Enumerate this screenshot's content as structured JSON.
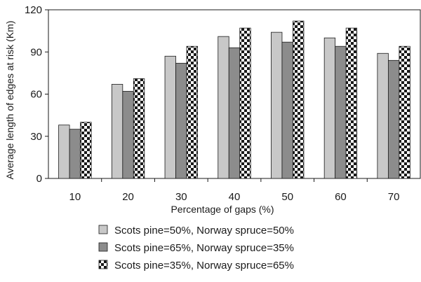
{
  "chart_data": {
    "type": "bar",
    "title": "",
    "xlabel": "Percentage of gaps (%)",
    "ylabel": "Average length of edges at risk (Km)",
    "categories": [
      "10",
      "20",
      "30",
      "40",
      "50",
      "60",
      "70"
    ],
    "ylim": [
      0,
      120
    ],
    "yticks": [
      "0",
      "30",
      "60",
      "90",
      "120"
    ],
    "grid": "none",
    "legend_position": "bottom",
    "series": [
      {
        "name": "Scots pine=50%, Norway spruce=50%",
        "values": [
          38,
          67,
          87,
          101,
          104,
          100,
          89
        ],
        "color": "#c8c8c8",
        "pattern": "solid"
      },
      {
        "name": "Scots pine=65%, Norway spruce=35%",
        "values": [
          35,
          62,
          82,
          93,
          97,
          94,
          84
        ],
        "color": "#8c8c8c",
        "pattern": "solid"
      },
      {
        "name": "Scots pine=35%, Norway spruce=65%",
        "values": [
          40,
          71,
          94,
          107,
          112,
          107,
          94
        ],
        "color": "#1a1a1a",
        "pattern": "checkerboard"
      }
    ]
  }
}
